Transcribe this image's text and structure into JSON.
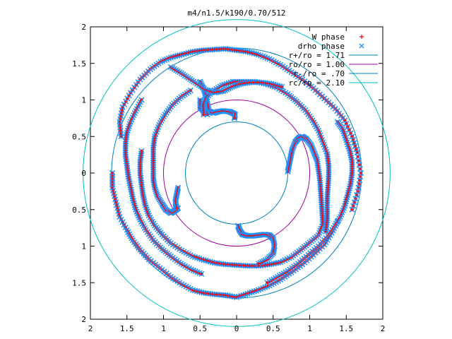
{
  "chart_data": {
    "type": "scatter",
    "title": "m4/n1.5/k190/0.70/512",
    "xlabel": "",
    "ylabel": "",
    "xlim": [
      -2,
      2
    ],
    "ylim": [
      -2,
      2
    ],
    "x_ticks": [
      {
        "value": -2,
        "label": "2"
      },
      {
        "value": -1.5,
        "label": "1.5"
      },
      {
        "value": -1,
        "label": "1"
      },
      {
        "value": -0.5,
        "label": "0.5"
      },
      {
        "value": 0,
        "label": "0"
      },
      {
        "value": 0.5,
        "label": "0.5"
      },
      {
        "value": 1,
        "label": "1"
      },
      {
        "value": 1.5,
        "label": "1.5"
      },
      {
        "value": 2,
        "label": "2"
      }
    ],
    "y_ticks": [
      {
        "value": 2,
        "label": "2"
      },
      {
        "value": 1.5,
        "label": "1.5"
      },
      {
        "value": 1,
        "label": "1"
      },
      {
        "value": 0.5,
        "label": "0.5"
      },
      {
        "value": 0,
        "label": "0"
      },
      {
        "value": -0.5,
        "label": "0.5"
      },
      {
        "value": -1,
        "label": "1"
      },
      {
        "value": -1.5,
        "label": "1.5"
      },
      {
        "value": -2,
        "label": "2"
      }
    ],
    "grid": false,
    "legend_position": "top-right",
    "legend": [
      {
        "label": "W phase",
        "kind": "marker",
        "marker": "plus",
        "color": "#ff0000"
      },
      {
        "label": "drho phase",
        "kind": "marker",
        "marker": "cross",
        "color": "#1e90ff"
      },
      {
        "label": "r+/ro = 1.71",
        "kind": "circle",
        "radius": 1.71,
        "color": "#0080c0"
      },
      {
        "label": "ro/ro = 1.00",
        "kind": "circle",
        "radius": 1.0,
        "color": "#a000a0"
      },
      {
        "label": "r-/ro = .70",
        "kind": "circle",
        "radius": 0.7,
        "color": "#0080c0"
      },
      {
        "label": "rc/ro = 2.10",
        "kind": "circle",
        "radius": 2.1,
        "color": "#00c0c0"
      }
    ],
    "marker_colors": {
      "w_phase": "#ff0000",
      "drho_phase": "#1e90ff"
    },
    "series": [
      {
        "id": "outer-spiral-a",
        "points": [
          [
            -1.7,
            0.0
          ],
          [
            -1.7,
            -0.2
          ],
          [
            -1.65,
            -0.4
          ],
          [
            -1.6,
            -0.6
          ],
          [
            -1.5,
            -0.78
          ],
          [
            -1.42,
            -0.92
          ],
          [
            -1.32,
            -1.05
          ],
          [
            -1.2,
            -1.18
          ],
          [
            -1.05,
            -1.3
          ],
          [
            -0.9,
            -1.42
          ],
          [
            -0.75,
            -1.52
          ],
          [
            -0.6,
            -1.6
          ],
          [
            -0.45,
            -1.64
          ],
          [
            -0.3,
            -1.66
          ],
          [
            -0.15,
            -1.67
          ],
          [
            0.0,
            -1.7
          ],
          [
            0.15,
            -1.65
          ],
          [
            0.3,
            -1.6
          ],
          [
            0.45,
            -1.54
          ],
          [
            0.6,
            -1.46
          ],
          [
            0.75,
            -1.36
          ],
          [
            0.9,
            -1.25
          ],
          [
            1.05,
            -1.12
          ],
          [
            1.2,
            -0.98
          ],
          [
            1.3,
            -0.82
          ],
          [
            1.38,
            -0.66
          ]
        ]
      },
      {
        "id": "outer-spiral-b",
        "points": [
          [
            -1.58,
            0.5
          ],
          [
            -1.6,
            0.7
          ],
          [
            -1.56,
            0.9
          ],
          [
            -1.45,
            1.1
          ],
          [
            -1.32,
            1.28
          ],
          [
            -1.18,
            1.42
          ],
          [
            -1.04,
            1.52
          ],
          [
            -0.9,
            1.58
          ],
          [
            -0.75,
            1.62
          ],
          [
            -0.6,
            1.66
          ],
          [
            -0.45,
            1.68
          ],
          [
            -0.3,
            1.69
          ],
          [
            -0.15,
            1.7
          ],
          [
            0.0,
            1.68
          ],
          [
            0.15,
            1.66
          ],
          [
            0.3,
            1.62
          ],
          [
            0.45,
            1.56
          ],
          [
            0.6,
            1.48
          ],
          [
            0.75,
            1.38
          ],
          [
            0.9,
            1.28
          ],
          [
            1.05,
            1.16
          ],
          [
            1.2,
            1.02
          ],
          [
            1.35,
            0.88
          ],
          [
            1.48,
            0.72
          ],
          [
            1.58,
            0.5
          ],
          [
            1.65,
            0.28
          ],
          [
            1.7,
            0.0
          ],
          [
            1.66,
            -0.25
          ],
          [
            1.58,
            -0.5
          ]
        ]
      },
      {
        "id": "inner-arm-top-a",
        "points": [
          [
            -0.5,
            1.25
          ],
          [
            -0.45,
            1.15
          ],
          [
            -0.42,
            1.05
          ],
          [
            -0.4,
            0.95
          ],
          [
            -0.38,
            0.85
          ],
          [
            -0.32,
            0.82
          ],
          [
            -0.25,
            0.84
          ],
          [
            -0.18,
            0.85
          ],
          [
            -0.1,
            0.84
          ],
          [
            -0.05,
            0.82
          ],
          [
            -0.02,
            0.8
          ],
          [
            -0.03,
            0.75
          ]
        ]
      },
      {
        "id": "inner-arm-top-b",
        "points": [
          [
            -0.5,
            1.0
          ],
          [
            -0.5,
            0.9
          ],
          [
            -0.45,
            0.85
          ],
          [
            -0.4,
            0.8
          ]
        ]
      },
      {
        "id": "arm-upper",
        "points": [
          [
            -0.05,
            1.25
          ],
          [
            0.1,
            1.25
          ],
          [
            0.25,
            1.25
          ],
          [
            0.4,
            1.22
          ],
          [
            0.55,
            1.17
          ],
          [
            0.7,
            1.08
          ],
          [
            0.82,
            0.98
          ],
          [
            0.94,
            0.86
          ],
          [
            1.04,
            0.72
          ],
          [
            1.12,
            0.58
          ],
          [
            1.18,
            0.42
          ],
          [
            1.24,
            0.26
          ],
          [
            1.26,
            0.1
          ],
          [
            1.26,
            -0.05
          ],
          [
            1.25,
            -0.2
          ],
          [
            1.24,
            -0.35
          ],
          [
            1.24,
            -0.5
          ],
          [
            1.24,
            -0.65
          ],
          [
            1.22,
            -0.8
          ]
        ]
      },
      {
        "id": "arm-upper-left",
        "points": [
          [
            -0.05,
            1.25
          ],
          [
            -0.2,
            1.2
          ],
          [
            -0.33,
            1.12
          ],
          [
            -0.42,
            1.02
          ],
          [
            -0.46,
            0.92
          ],
          [
            -0.45,
            0.8
          ]
        ]
      },
      {
        "id": "arm-right",
        "points": [
          [
            0.7,
            0.02
          ],
          [
            0.72,
            0.12
          ],
          [
            0.74,
            0.22
          ],
          [
            0.76,
            0.32
          ],
          [
            0.8,
            0.42
          ],
          [
            0.85,
            0.48
          ],
          [
            0.9,
            0.5
          ],
          [
            0.96,
            0.46
          ],
          [
            1.02,
            0.38
          ],
          [
            1.06,
            0.28
          ],
          [
            1.1,
            0.18
          ],
          [
            1.12,
            0.05
          ],
          [
            1.14,
            -0.1
          ],
          [
            1.15,
            -0.25
          ],
          [
            1.16,
            -0.4
          ],
          [
            1.17,
            -0.55
          ],
          [
            1.18,
            -0.7
          ],
          [
            1.12,
            -0.85
          ],
          [
            1.0,
            -0.95
          ],
          [
            0.88,
            -1.05
          ],
          [
            0.75,
            -1.15
          ],
          [
            0.6,
            -1.22
          ],
          [
            0.45,
            -1.25
          ],
          [
            0.3,
            -1.27
          ],
          [
            0.15,
            -1.27
          ],
          [
            0.0,
            -1.26
          ],
          [
            -0.15,
            -1.25
          ],
          [
            -0.3,
            -1.23
          ],
          [
            -0.45,
            -1.19
          ],
          [
            -0.6,
            -1.14
          ],
          [
            -0.75,
            -1.06
          ],
          [
            -0.9,
            -0.96
          ],
          [
            -1.02,
            -0.84
          ],
          [
            -1.12,
            -0.72
          ],
          [
            -1.2,
            -0.58
          ],
          [
            -1.25,
            -0.44
          ],
          [
            -1.28,
            -0.3
          ],
          [
            -1.3,
            -0.16
          ],
          [
            -1.32,
            0.0
          ],
          [
            -1.32,
            0.15
          ],
          [
            -1.3,
            0.3
          ]
        ]
      },
      {
        "id": "arm-bottom-center",
        "points": [
          [
            0.02,
            -0.72
          ],
          [
            0.04,
            -0.78
          ],
          [
            0.08,
            -0.84
          ],
          [
            0.15,
            -0.86
          ],
          [
            0.22,
            -0.86
          ],
          [
            0.3,
            -0.85
          ],
          [
            0.38,
            -0.84
          ],
          [
            0.45,
            -0.85
          ],
          [
            0.5,
            -0.9
          ],
          [
            0.52,
            -1.0
          ],
          [
            0.5,
            -1.1
          ],
          [
            0.42,
            -1.18
          ],
          [
            0.3,
            -1.24
          ]
        ]
      },
      {
        "id": "arm-left",
        "points": [
          [
            -0.8,
            -0.48
          ],
          [
            -0.85,
            -0.52
          ],
          [
            -0.9,
            -0.55
          ],
          [
            -0.97,
            -0.5
          ],
          [
            -1.02,
            -0.42
          ],
          [
            -1.08,
            -0.32
          ],
          [
            -1.12,
            -0.2
          ],
          [
            -1.14,
            -0.08
          ],
          [
            -1.14,
            0.05
          ],
          [
            -1.14,
            0.2
          ],
          [
            -1.14,
            0.35
          ],
          [
            -1.12,
            0.5
          ],
          [
            -1.06,
            0.66
          ],
          [
            -0.98,
            0.8
          ],
          [
            -0.88,
            0.93
          ],
          [
            -0.76,
            1.04
          ],
          [
            -0.63,
            1.13
          ]
        ]
      },
      {
        "id": "arm-left-inner",
        "points": [
          [
            -0.8,
            -0.2
          ],
          [
            -0.82,
            -0.3
          ],
          [
            -0.84,
            -0.4
          ],
          [
            -0.82,
            -0.48
          ]
        ]
      },
      {
        "id": "outer-loop-right",
        "points": [
          [
            1.38,
            0.7
          ],
          [
            1.45,
            0.6
          ],
          [
            1.5,
            0.45
          ],
          [
            1.55,
            0.3
          ],
          [
            1.58,
            0.15
          ],
          [
            1.58,
            0.0
          ],
          [
            1.56,
            -0.15
          ],
          [
            1.52,
            -0.3
          ],
          [
            1.48,
            -0.45
          ],
          [
            1.42,
            -0.6
          ],
          [
            1.35,
            -0.72
          ],
          [
            1.25,
            -0.86
          ],
          [
            1.12,
            -1.0
          ],
          [
            0.98,
            -1.12
          ],
          [
            0.84,
            -1.24
          ],
          [
            0.7,
            -1.34
          ],
          [
            0.56,
            -1.42
          ],
          [
            0.42,
            -1.5
          ]
        ]
      },
      {
        "id": "outer-loop-left",
        "points": [
          [
            -1.3,
            1.0
          ],
          [
            -1.38,
            0.85
          ],
          [
            -1.45,
            0.7
          ],
          [
            -1.5,
            0.55
          ],
          [
            -1.52,
            0.4
          ],
          [
            -1.52,
            0.25
          ],
          [
            -1.5,
            0.1
          ],
          [
            -1.48,
            -0.05
          ],
          [
            -1.45,
            -0.2
          ],
          [
            -1.42,
            -0.35
          ],
          [
            -1.38,
            -0.5
          ],
          [
            -1.32,
            -0.64
          ],
          [
            -1.24,
            -0.78
          ],
          [
            -1.14,
            -0.92
          ],
          [
            -1.02,
            -1.04
          ],
          [
            -0.9,
            -1.14
          ],
          [
            -0.76,
            -1.24
          ],
          [
            -0.62,
            -1.32
          ],
          [
            -0.48,
            -1.38
          ]
        ]
      },
      {
        "id": "outer-loop-top",
        "points": [
          [
            -0.9,
            1.45
          ],
          [
            -0.78,
            1.38
          ],
          [
            -0.66,
            1.3
          ],
          [
            -0.54,
            1.22
          ],
          [
            -0.42,
            1.14
          ],
          [
            -0.3,
            1.1
          ],
          [
            -0.18,
            1.12
          ],
          [
            -0.06,
            1.18
          ],
          [
            0.06,
            1.22
          ],
          [
            0.2,
            1.24
          ],
          [
            0.34,
            1.24
          ],
          [
            0.48,
            1.22
          ],
          [
            0.62,
            1.18
          ]
        ]
      }
    ]
  }
}
